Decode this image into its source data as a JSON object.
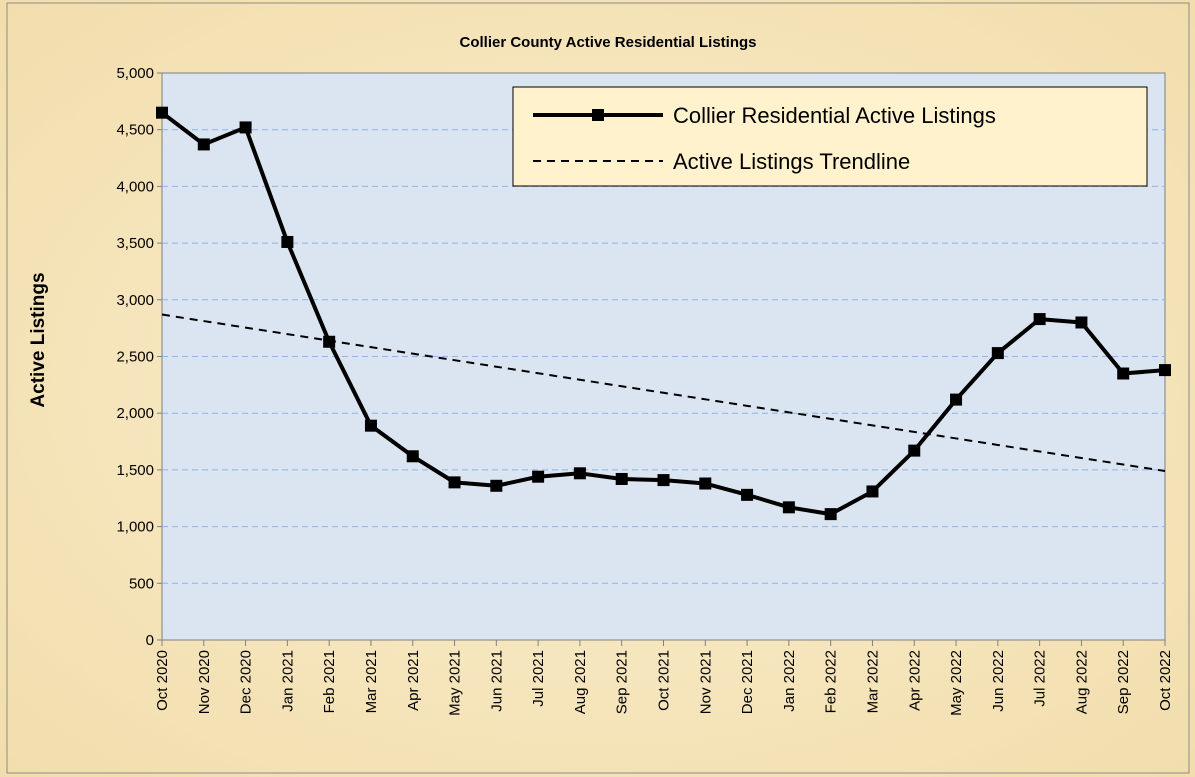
{
  "chart_data": {
    "type": "line",
    "title": "Collier County Active Residential Listings",
    "y_label": "Active Listings",
    "categories": [
      "Oct 2020",
      "Nov 2020",
      "Dec 2020",
      "Jan 2021",
      "Feb 2021",
      "Mar 2021",
      "Apr 2021",
      "May 2021",
      "Jun 2021",
      "Jul 2021",
      "Aug 2021",
      "Sep 2021",
      "Oct 2021",
      "Nov 2021",
      "Dec 2021",
      "Jan 2022",
      "Feb 2022",
      "Mar 2022",
      "Apr 2022",
      "May 2022",
      "Jun 2022",
      "Jul 2022",
      "Aug 2022",
      "Sep 2022",
      "Oct 2022"
    ],
    "series": [
      {
        "name": "Collier Residential Active Listings",
        "color": "#000000",
        "style": "solid",
        "marker": "square",
        "values": [
          4650,
          4370,
          4520,
          3510,
          2630,
          1890,
          1620,
          1390,
          1360,
          1440,
          1470,
          1420,
          1410,
          1380,
          1280,
          1170,
          1110,
          1310,
          1670,
          2120,
          2530,
          2830,
          2800,
          2350,
          2380
        ]
      },
      {
        "name": "Active Listings Trendline",
        "color": "#000000",
        "style": "dashed",
        "marker": "none",
        "values": [
          2870,
          2812.5,
          2755,
          2697.5,
          2640,
          2582.5,
          2525,
          2467.5,
          2410,
          2352.5,
          2295,
          2237.5,
          2180,
          2122.5,
          2065,
          2007.5,
          1950,
          1892.5,
          1835,
          1777.5,
          1720,
          1662.5,
          1605,
          1547.5,
          1490
        ]
      }
    ],
    "ylim": [
      0,
      5000
    ],
    "yticks": [
      0,
      {
        "value": 500,
        "label": "500"
      },
      {
        "value": 1000,
        "label": "1,000"
      },
      {
        "value": 1500,
        "label": "1,500"
      },
      {
        "value": 2000,
        "label": "2,000"
      },
      {
        "value": 2500,
        "label": "2,500"
      },
      {
        "value": 3000,
        "label": "3,000"
      },
      {
        "value": 3500,
        "label": "3,500"
      },
      {
        "value": 4000,
        "label": "4,000"
      },
      {
        "value": 4500,
        "label": "4,500"
      },
      {
        "value": 5000,
        "label": "5,000"
      }
    ],
    "grid": true,
    "legend": "top-right"
  }
}
